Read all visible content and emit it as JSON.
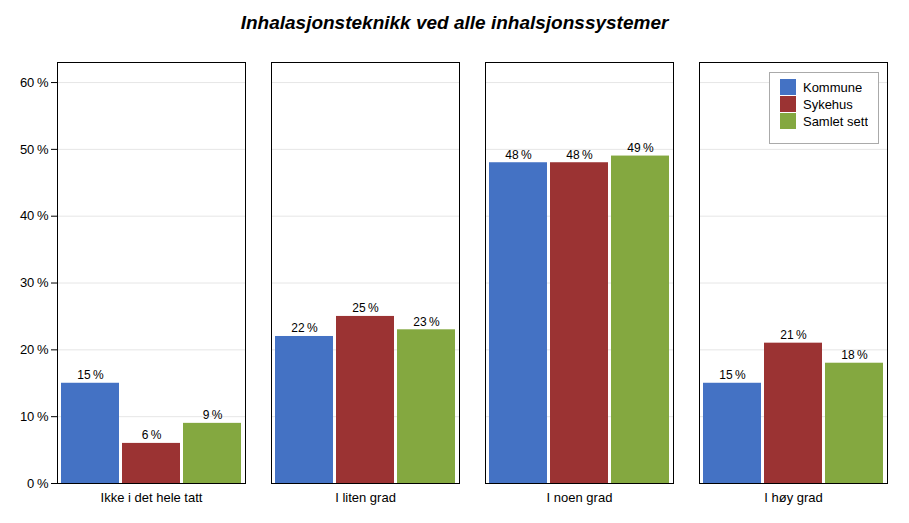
{
  "chart_data": {
    "type": "bar",
    "title": "Inhalasjonsteknikk ved alle inhalsjonssystemer",
    "categories": [
      "Ikke i det hele tatt",
      "I liten grad",
      "I noen grad",
      "I høy grad"
    ],
    "series": [
      {
        "name": "Kommune",
        "color": "#4472C4",
        "values": [
          15,
          22,
          48,
          15
        ],
        "value_labels": [
          "15 %",
          "22 %",
          "48 %",
          "15 %"
        ]
      },
      {
        "name": "Sykehus",
        "color": "#9B3333",
        "values": [
          6,
          25,
          48,
          21
        ],
        "value_labels": [
          "6 %",
          "25 %",
          "48 %",
          "21 %"
        ]
      },
      {
        "name": "Samlet sett",
        "color": "#84A840",
        "values": [
          9,
          23,
          49,
          18
        ],
        "value_labels": [
          "9 %",
          "23 %",
          "49 %",
          "18 %"
        ]
      }
    ],
    "ylim": [
      0,
      63
    ],
    "yticks": [
      {
        "value": 0,
        "label": "0 %"
      },
      {
        "value": 10,
        "label": "10 %"
      },
      {
        "value": 20,
        "label": "20 %"
      },
      {
        "value": 30,
        "label": "30 %"
      },
      {
        "value": 40,
        "label": "40 %"
      },
      {
        "value": 50,
        "label": "50 %"
      },
      {
        "value": 60,
        "label": "60 %"
      }
    ],
    "grid": true,
    "legend": "upper right",
    "data_labels": true
  }
}
